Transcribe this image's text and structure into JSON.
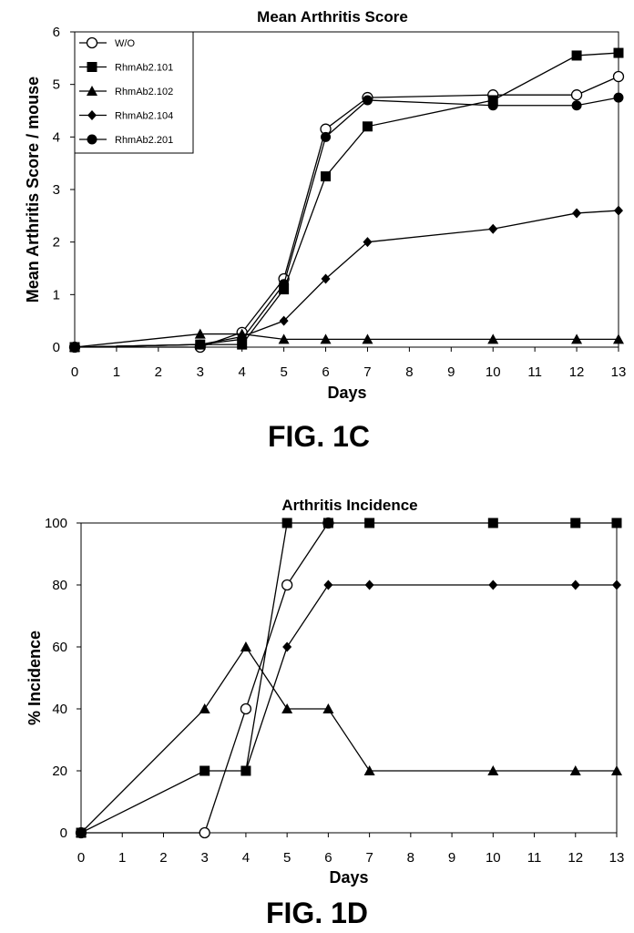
{
  "chart_data": [
    {
      "type": "line",
      "title": "Mean Arthritis Score",
      "xlabel": "Days",
      "ylabel": "Mean Arthritis Score / mouse",
      "xlim": [
        0,
        13
      ],
      "ylim": [
        0,
        6
      ],
      "x_ticks": [
        "0",
        "1",
        "2",
        "3",
        "4",
        "5",
        "6",
        "7",
        "8",
        "9",
        "10",
        "11",
        "12",
        "13"
      ],
      "y_ticks": [
        "0",
        "1",
        "2",
        "3",
        "4",
        "5",
        "6"
      ],
      "grid": false,
      "legend_position": "top-left",
      "caption": "FIG. 1C",
      "series": [
        {
          "name": "W/O",
          "marker": "open-circle",
          "x": [
            0,
            3,
            4,
            5,
            6,
            7,
            10,
            12,
            13
          ],
          "y": [
            0,
            0,
            0.28,
            1.3,
            4.15,
            4.75,
            4.8,
            4.8,
            5.15
          ]
        },
        {
          "name": "RhmAb2.101",
          "marker": "square",
          "x": [
            0,
            3,
            4,
            5,
            6,
            7,
            10,
            12,
            13
          ],
          "y": [
            0,
            0.05,
            0.05,
            1.1,
            3.25,
            4.2,
            4.7,
            5.55,
            5.6
          ]
        },
        {
          "name": "RhmAb2.102",
          "marker": "triangle",
          "x": [
            0,
            3,
            4,
            5,
            6,
            7,
            10,
            12,
            13
          ],
          "y": [
            0,
            0.25,
            0.25,
            0.15,
            0.15,
            0.15,
            0.15,
            0.15,
            0.15
          ]
        },
        {
          "name": "RhmAb2.104",
          "marker": "diamond",
          "x": [
            0,
            3,
            4,
            5,
            6,
            7,
            10,
            12,
            13
          ],
          "y": [
            0,
            0.05,
            0.2,
            0.5,
            1.3,
            2.0,
            2.25,
            2.55,
            2.6
          ]
        },
        {
          "name": "RhmAb2.201",
          "marker": "filled-circle",
          "x": [
            0,
            3,
            4,
            5,
            6,
            7,
            10,
            12,
            13
          ],
          "y": [
            0,
            0.05,
            0.15,
            1.2,
            4.0,
            4.7,
            4.6,
            4.6,
            4.75
          ]
        }
      ]
    },
    {
      "type": "line",
      "title": "Arthritis Incidence",
      "xlabel": "Days",
      "ylabel": "% Incidence",
      "xlim": [
        0,
        13
      ],
      "ylim": [
        0,
        100
      ],
      "x_ticks": [
        "0",
        "1",
        "2",
        "3",
        "4",
        "5",
        "6",
        "7",
        "8",
        "9",
        "10",
        "11",
        "12",
        "13"
      ],
      "y_ticks": [
        "0",
        "20",
        "40",
        "60",
        "80",
        "100"
      ],
      "grid": false,
      "caption": "FIG. 1D",
      "series": [
        {
          "marker": "open-circle",
          "x": [
            0,
            3,
            4,
            5,
            6
          ],
          "y": [
            0,
            0,
            40,
            80,
            100
          ]
        },
        {
          "marker": "square",
          "x": [
            0,
            3,
            4,
            5,
            6,
            7,
            10,
            12,
            13
          ],
          "y": [
            0,
            20,
            20,
            100,
            100,
            100,
            100,
            100,
            100
          ]
        },
        {
          "marker": "triangle",
          "x": [
            0,
            3,
            4,
            5,
            6,
            7,
            10,
            12,
            13
          ],
          "y": [
            0,
            40,
            60,
            40,
            40,
            20,
            20,
            20,
            20
          ]
        },
        {
          "marker": "diamond",
          "x": [
            4,
            5,
            6,
            7,
            10,
            12,
            13
          ],
          "y": [
            20,
            60,
            80,
            80,
            80,
            80,
            80
          ]
        }
      ]
    }
  ]
}
